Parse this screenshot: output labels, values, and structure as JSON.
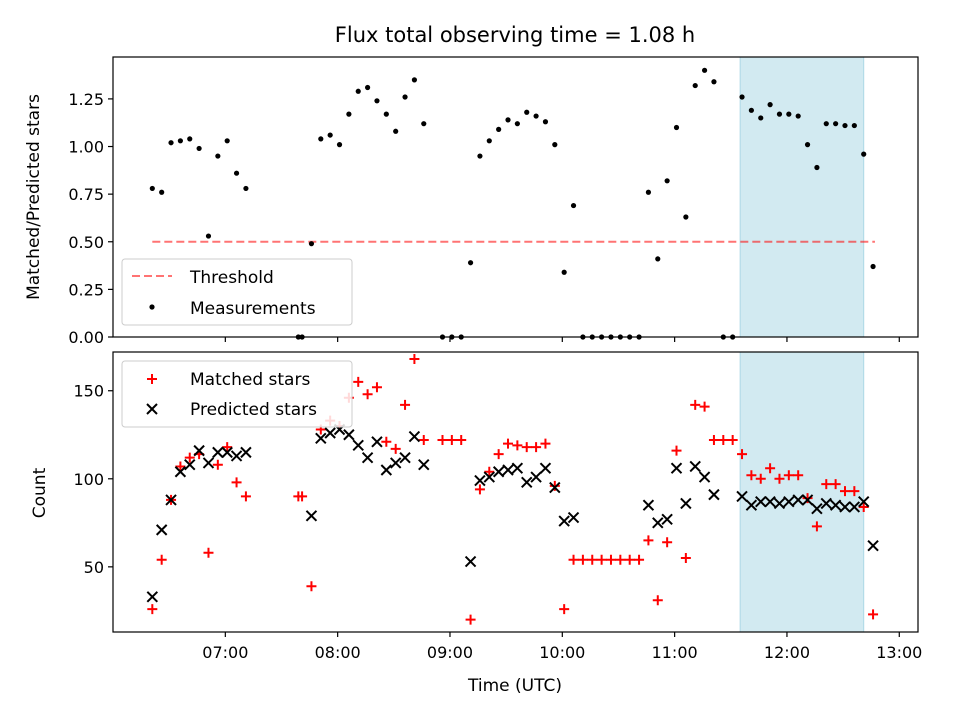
{
  "title": "Flux total observing time = 1.08 h",
  "chart_data": [
    {
      "type": "scatter",
      "panel": "top",
      "xlabel": "",
      "ylabel": "Matched/Predicted stars",
      "xlim": [
        "06:00",
        "13:10"
      ],
      "ylim": [
        0,
        1.47
      ],
      "yticks": [
        "0.00",
        "0.25",
        "0.50",
        "0.75",
        "1.00",
        "1.25"
      ],
      "grid": false,
      "legend": "lower-left",
      "highlight_span": {
        "from": "11:35",
        "to": "12:41",
        "color": "#add8e6"
      },
      "threshold": {
        "name": "Threshold",
        "value": 0.5,
        "from": "06:21",
        "to": "12:47",
        "color": "#ff0000",
        "style": "dashed"
      },
      "series": [
        {
          "name": "Measurements",
          "color": "#000000",
          "marker": "dot",
          "points": [
            [
              "06:21",
              0.78
            ],
            [
              "06:26",
              0.76
            ],
            [
              "06:31",
              1.02
            ],
            [
              "06:36",
              1.03
            ],
            [
              "06:41",
              1.04
            ],
            [
              "06:46",
              0.99
            ],
            [
              "06:51",
              0.53
            ],
            [
              "06:56",
              0.95
            ],
            [
              "07:01",
              1.03
            ],
            [
              "07:06",
              0.86
            ],
            [
              "07:11",
              0.78
            ],
            [
              "07:39",
              0.0
            ],
            [
              "07:41",
              0.0
            ],
            [
              "07:46",
              0.49
            ],
            [
              "07:51",
              1.04
            ],
            [
              "07:56",
              1.06
            ],
            [
              "08:01",
              1.01
            ],
            [
              "08:06",
              1.17
            ],
            [
              "08:11",
              1.29
            ],
            [
              "08:16",
              1.31
            ],
            [
              "08:21",
              1.24
            ],
            [
              "08:26",
              1.17
            ],
            [
              "08:31",
              1.08
            ],
            [
              "08:36",
              1.26
            ],
            [
              "08:41",
              1.35
            ],
            [
              "08:46",
              1.12
            ],
            [
              "08:56",
              0.0
            ],
            [
              "09:01",
              0.0
            ],
            [
              "09:06",
              0.0
            ],
            [
              "09:11",
              0.39
            ],
            [
              "09:16",
              0.95
            ],
            [
              "09:21",
              1.03
            ],
            [
              "09:26",
              1.09
            ],
            [
              "09:31",
              1.14
            ],
            [
              "09:36",
              1.12
            ],
            [
              "09:41",
              1.18
            ],
            [
              "09:46",
              1.16
            ],
            [
              "09:51",
              1.13
            ],
            [
              "09:56",
              1.01
            ],
            [
              "10:01",
              0.34
            ],
            [
              "10:06",
              0.69
            ],
            [
              "10:11",
              0.0
            ],
            [
              "10:16",
              0.0
            ],
            [
              "10:21",
              0.0
            ],
            [
              "10:26",
              0.0
            ],
            [
              "10:31",
              0.0
            ],
            [
              "10:36",
              0.0
            ],
            [
              "10:41",
              0.0
            ],
            [
              "10:46",
              0.76
            ],
            [
              "10:51",
              0.41
            ],
            [
              "10:56",
              0.82
            ],
            [
              "11:01",
              1.1
            ],
            [
              "11:06",
              0.63
            ],
            [
              "11:11",
              1.32
            ],
            [
              "11:16",
              1.4
            ],
            [
              "11:21",
              1.34
            ],
            [
              "11:26",
              0.0
            ],
            [
              "11:31",
              0.0
            ],
            [
              "11:36",
              1.26
            ],
            [
              "11:41",
              1.19
            ],
            [
              "11:46",
              1.15
            ],
            [
              "11:51",
              1.22
            ],
            [
              "11:56",
              1.17
            ],
            [
              "12:01",
              1.17
            ],
            [
              "12:06",
              1.16
            ],
            [
              "12:11",
              1.01
            ],
            [
              "12:16",
              0.89
            ],
            [
              "12:21",
              1.12
            ],
            [
              "12:26",
              1.12
            ],
            [
              "12:31",
              1.11
            ],
            [
              "12:36",
              1.11
            ],
            [
              "12:41",
              0.96
            ],
            [
              "12:46",
              0.37
            ]
          ]
        }
      ]
    },
    {
      "type": "scatter",
      "panel": "bottom",
      "xlabel": "Time (UTC)",
      "ylabel": "Count",
      "xlim": [
        "06:00",
        "13:10"
      ],
      "ylim": [
        13,
        172
      ],
      "xticks": [
        "07:00",
        "08:00",
        "09:00",
        "10:00",
        "11:00",
        "12:00",
        "13:00"
      ],
      "yticks": [
        "50",
        "100",
        "150"
      ],
      "grid": false,
      "legend": "upper-left",
      "highlight_span": {
        "from": "11:35",
        "to": "12:41",
        "color": "#add8e6"
      },
      "series": [
        {
          "name": "Matched stars",
          "color": "#ff0000",
          "marker": "plus",
          "points": [
            [
              "06:21",
              26
            ],
            [
              "06:26",
              54
            ],
            [
              "06:31",
              88
            ],
            [
              "06:36",
              107
            ],
            [
              "06:41",
              112
            ],
            [
              "06:46",
              114
            ],
            [
              "06:51",
              58
            ],
            [
              "06:56",
              108
            ],
            [
              "07:01",
              118
            ],
            [
              "07:06",
              98
            ],
            [
              "07:11",
              90
            ],
            [
              "07:39",
              90
            ],
            [
              "07:41",
              90
            ],
            [
              "07:46",
              39
            ],
            [
              "07:51",
              128
            ],
            [
              "07:56",
              133
            ],
            [
              "08:01",
              130
            ],
            [
              "08:06",
              146
            ],
            [
              "08:11",
              155
            ],
            [
              "08:16",
              148
            ],
            [
              "08:21",
              152
            ],
            [
              "08:26",
              121
            ],
            [
              "08:31",
              117
            ],
            [
              "08:36",
              142
            ],
            [
              "08:41",
              168
            ],
            [
              "08:46",
              122
            ],
            [
              "08:56",
              122
            ],
            [
              "09:01",
              122
            ],
            [
              "09:06",
              122
            ],
            [
              "09:11",
              20
            ],
            [
              "09:16",
              94
            ],
            [
              "09:21",
              104
            ],
            [
              "09:26",
              114
            ],
            [
              "09:31",
              120
            ],
            [
              "09:36",
              119
            ],
            [
              "09:41",
              118
            ],
            [
              "09:46",
              118
            ],
            [
              "09:51",
              120
            ],
            [
              "09:56",
              96
            ],
            [
              "10:01",
              26
            ],
            [
              "10:06",
              54
            ],
            [
              "10:11",
              54
            ],
            [
              "10:16",
              54
            ],
            [
              "10:21",
              54
            ],
            [
              "10:26",
              54
            ],
            [
              "10:31",
              54
            ],
            [
              "10:36",
              54
            ],
            [
              "10:41",
              54
            ],
            [
              "10:46",
              65
            ],
            [
              "10:51",
              31
            ],
            [
              "10:56",
              64
            ],
            [
              "11:01",
              116
            ],
            [
              "11:06",
              55
            ],
            [
              "11:11",
              142
            ],
            [
              "11:16",
              141
            ],
            [
              "11:21",
              122
            ],
            [
              "11:26",
              122
            ],
            [
              "11:31",
              122
            ],
            [
              "11:36",
              114
            ],
            [
              "11:41",
              102
            ],
            [
              "11:46",
              100
            ],
            [
              "11:51",
              106
            ],
            [
              "11:56",
              100
            ],
            [
              "12:01",
              102
            ],
            [
              "12:06",
              102
            ],
            [
              "12:11",
              89
            ],
            [
              "12:16",
              73
            ],
            [
              "12:21",
              97
            ],
            [
              "12:26",
              97
            ],
            [
              "12:31",
              93
            ],
            [
              "12:36",
              93
            ],
            [
              "12:41",
              84
            ],
            [
              "12:46",
              23
            ]
          ]
        },
        {
          "name": "Predicted stars",
          "color": "#000000",
          "marker": "x",
          "points": [
            [
              "06:21",
              33
            ],
            [
              "06:26",
              71
            ],
            [
              "06:31",
              88
            ],
            [
              "06:36",
              104
            ],
            [
              "06:41",
              108
            ],
            [
              "06:46",
              116
            ],
            [
              "06:51",
              109
            ],
            [
              "06:56",
              115
            ],
            [
              "07:01",
              115
            ],
            [
              "07:06",
              113
            ],
            [
              "07:11",
              115
            ],
            [
              "07:46",
              79
            ],
            [
              "07:51",
              123
            ],
            [
              "07:56",
              126
            ],
            [
              "08:01",
              128
            ],
            [
              "08:06",
              125
            ],
            [
              "08:11",
              119
            ],
            [
              "08:16",
              112
            ],
            [
              "08:21",
              121
            ],
            [
              "08:26",
              105
            ],
            [
              "08:31",
              109
            ],
            [
              "08:36",
              112
            ],
            [
              "08:41",
              124
            ],
            [
              "08:46",
              108
            ],
            [
              "09:11",
              53
            ],
            [
              "09:16",
              99
            ],
            [
              "09:21",
              101
            ],
            [
              "09:26",
              104
            ],
            [
              "09:31",
              105
            ],
            [
              "09:36",
              106
            ],
            [
              "09:41",
              98
            ],
            [
              "09:46",
              101
            ],
            [
              "09:51",
              106
            ],
            [
              "09:56",
              95
            ],
            [
              "10:01",
              76
            ],
            [
              "10:06",
              78
            ],
            [
              "10:46",
              85
            ],
            [
              "10:51",
              75
            ],
            [
              "10:56",
              77
            ],
            [
              "11:01",
              106
            ],
            [
              "11:06",
              86
            ],
            [
              "11:11",
              107
            ],
            [
              "11:16",
              101
            ],
            [
              "11:21",
              91
            ],
            [
              "11:36",
              90
            ],
            [
              "11:41",
              85
            ],
            [
              "11:46",
              87
            ],
            [
              "11:51",
              87
            ],
            [
              "11:56",
              86
            ],
            [
              "12:01",
              87
            ],
            [
              "12:06",
              88
            ],
            [
              "12:11",
              88
            ],
            [
              "12:16",
              83
            ],
            [
              "12:21",
              86
            ],
            [
              "12:26",
              85
            ],
            [
              "12:31",
              84
            ],
            [
              "12:36",
              84
            ],
            [
              "12:41",
              87
            ],
            [
              "12:46",
              62
            ]
          ]
        }
      ]
    }
  ]
}
